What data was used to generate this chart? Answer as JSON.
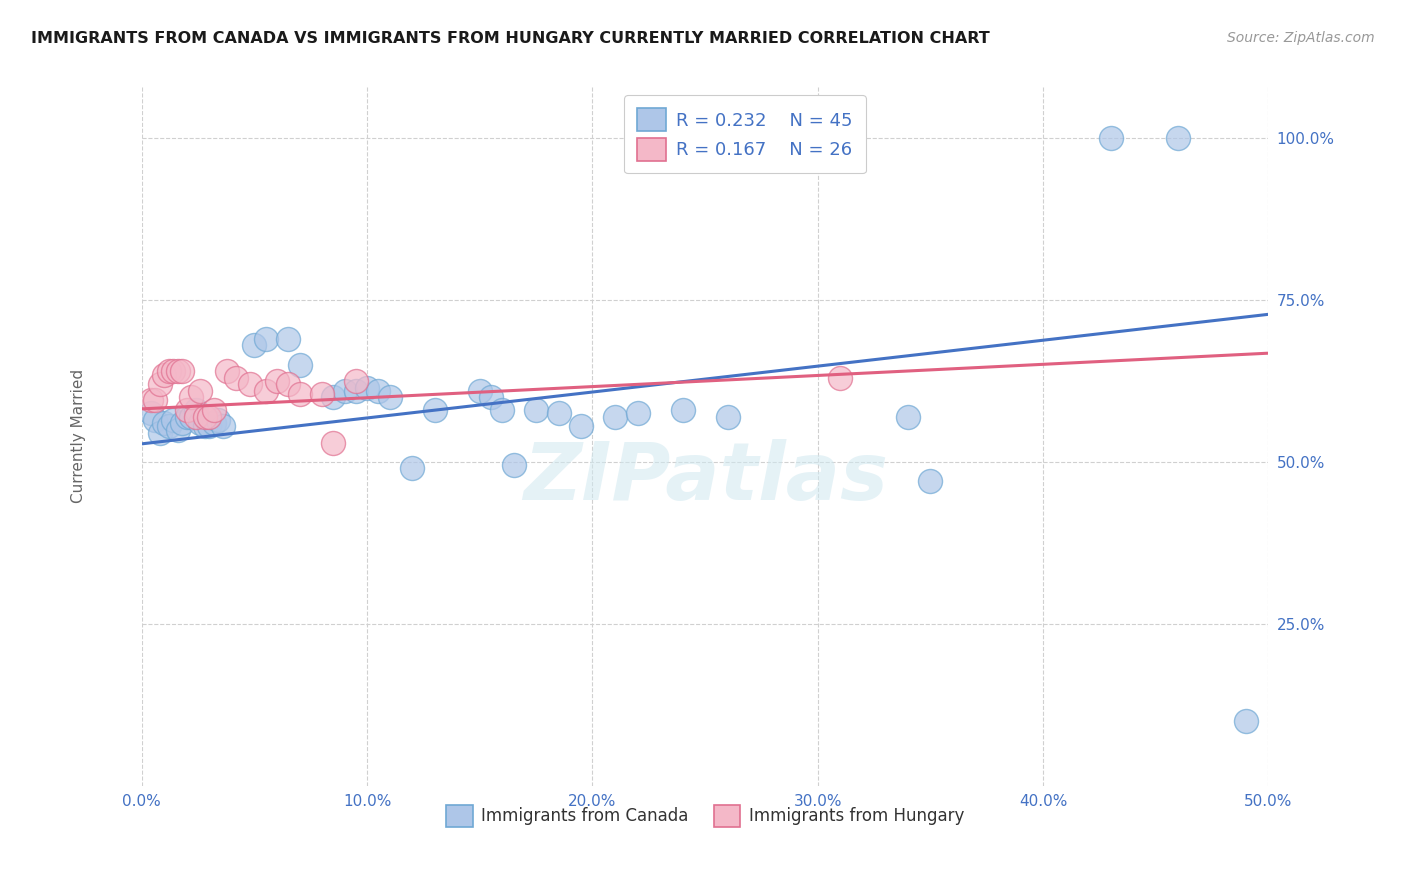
{
  "title": "IMMIGRANTS FROM CANADA VS IMMIGRANTS FROM HUNGARY CURRENTLY MARRIED CORRELATION CHART",
  "source": "Source: ZipAtlas.com",
  "ylabel": "Currently Married",
  "xlim": [
    0.0,
    0.5
  ],
  "ylim": [
    0.0,
    1.08
  ],
  "xtick_labels": [
    "0.0%",
    "10.0%",
    "20.0%",
    "30.0%",
    "40.0%",
    "50.0%"
  ],
  "xtick_vals": [
    0.0,
    0.1,
    0.2,
    0.3,
    0.4,
    0.5
  ],
  "ytick_labels": [
    "25.0%",
    "50.0%",
    "75.0%",
    "100.0%"
  ],
  "ytick_vals": [
    0.25,
    0.5,
    0.75,
    1.0
  ],
  "canada_color": "#aec6e8",
  "canada_edge": "#6fa8d4",
  "hungary_color": "#f4b8c8",
  "hungary_edge": "#e07090",
  "trendline_canada_color": "#4472c4",
  "trendline_hungary_color": "#e06080",
  "legend_r_canada": "R = 0.232",
  "legend_n_canada": "N = 45",
  "legend_r_hungary": "R = 0.167",
  "legend_n_hungary": "N = 26",
  "legend_label_canada": "Immigrants from Canada",
  "legend_label_hungary": "Immigrants from Hungary",
  "grid_color": "#d0d0d0",
  "watermark": "ZIPatlas",
  "canada_x": [
    0.004,
    0.006,
    0.008,
    0.01,
    0.012,
    0.014,
    0.016,
    0.018,
    0.02,
    0.022,
    0.024,
    0.026,
    0.028,
    0.03,
    0.032,
    0.034,
    0.036,
    0.05,
    0.055,
    0.065,
    0.07,
    0.085,
    0.09,
    0.095,
    0.1,
    0.105,
    0.11,
    0.12,
    0.13,
    0.15,
    0.155,
    0.16,
    0.165,
    0.175,
    0.185,
    0.195,
    0.21,
    0.22,
    0.24,
    0.26,
    0.34,
    0.35,
    0.43,
    0.46,
    0.49
  ],
  "canada_y": [
    0.575,
    0.565,
    0.545,
    0.56,
    0.555,
    0.565,
    0.55,
    0.56,
    0.57,
    0.57,
    0.58,
    0.56,
    0.555,
    0.555,
    0.56,
    0.565,
    0.555,
    0.68,
    0.69,
    0.69,
    0.65,
    0.6,
    0.61,
    0.61,
    0.615,
    0.61,
    0.6,
    0.49,
    0.58,
    0.61,
    0.6,
    0.58,
    0.495,
    0.58,
    0.575,
    0.555,
    0.57,
    0.575,
    0.58,
    0.57,
    0.57,
    0.47,
    1.0,
    1.0,
    0.1
  ],
  "hungary_x": [
    0.004,
    0.006,
    0.008,
    0.01,
    0.012,
    0.014,
    0.016,
    0.018,
    0.02,
    0.022,
    0.024,
    0.026,
    0.028,
    0.03,
    0.032,
    0.038,
    0.042,
    0.048,
    0.055,
    0.06,
    0.065,
    0.07,
    0.08,
    0.085,
    0.095,
    0.31
  ],
  "hungary_y": [
    0.595,
    0.595,
    0.62,
    0.635,
    0.64,
    0.64,
    0.64,
    0.64,
    0.58,
    0.6,
    0.57,
    0.61,
    0.57,
    0.57,
    0.58,
    0.64,
    0.63,
    0.62,
    0.61,
    0.625,
    0.62,
    0.605,
    0.605,
    0.53,
    0.625,
    0.63
  ],
  "trendline_canada_x0": 0.0,
  "trendline_canada_y0": 0.528,
  "trendline_canada_x1": 0.5,
  "trendline_canada_y1": 0.728,
  "trendline_hungary_x0": 0.0,
  "trendline_hungary_y0": 0.582,
  "trendline_hungary_x1": 0.5,
  "trendline_hungary_y1": 0.668
}
